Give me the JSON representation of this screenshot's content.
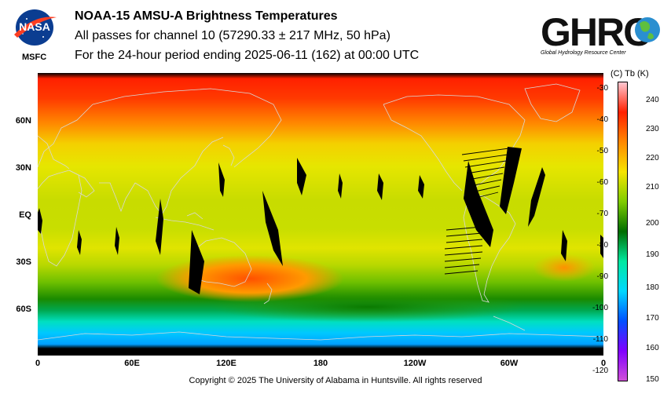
{
  "header": {
    "logo_text": "NASA",
    "org_label": "MSFC",
    "title": "NOAA-15 AMSU-A Brightness Temperatures",
    "subtitle": "All passes for channel 10 (57290.33 ± 217 MHz, 50 hPa)",
    "period": "For the 24-hour period ending 2025-06-11 (162) at 00:00 UTC",
    "ghrc_logo_text": "GHRC",
    "ghrc_name": "Global Hydrology Resource Center"
  },
  "map": {
    "lat_labels": [
      "60N",
      "30N",
      "EQ",
      "30S",
      "60S"
    ],
    "lon_labels": [
      "0",
      "60E",
      "120E",
      "180",
      "120W",
      "60W",
      "0"
    ],
    "missing_data_color": "#000000",
    "coastline_color": "#d8d8d8"
  },
  "colorbar": {
    "units_label": "(C)  Tb  (K)",
    "celsius_ticks": [
      "-30",
      "-40",
      "-50",
      "-60",
      "-70",
      "-80",
      "-90",
      "-100",
      "-110",
      "-120"
    ],
    "kelvin_ticks": [
      "240",
      "230",
      "220",
      "210",
      "200",
      "190",
      "180",
      "170",
      "160",
      "150"
    ],
    "colors": [
      "#ffc8d2",
      "#ff2000",
      "#ff8800",
      "#f6e400",
      "#7fcc00",
      "#006d00",
      "#00e8a0",
      "#00d8ff",
      "#0050ff",
      "#8000ff",
      "#d050d8"
    ]
  },
  "footer": {
    "copyright": "Copyright © 2025 The University of Alabama in Huntsville.  All rights reserved"
  }
}
